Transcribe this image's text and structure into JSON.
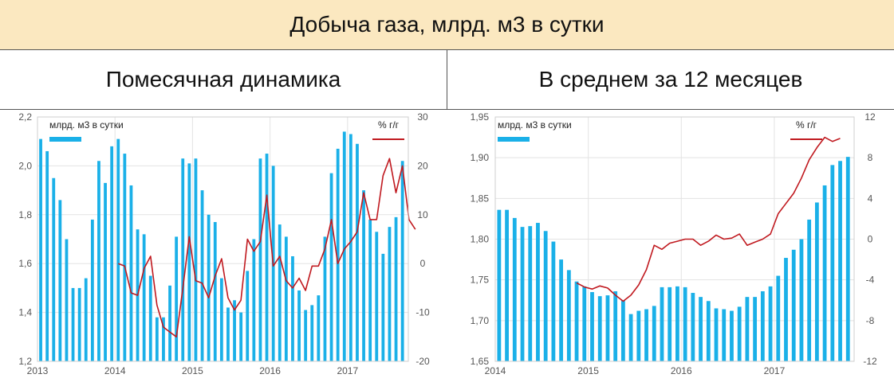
{
  "title": "Добыча газа, млрд. м3 в сутки",
  "colors": {
    "bar": "#1ab0e8",
    "line": "#c0191f"
  },
  "chart_data": [
    {
      "type": "bar+line",
      "title": "Помесячная динамика",
      "legend_left": "млрд. м3 в сутки",
      "legend_right": "% г/г",
      "x_start": "2013-01",
      "x_tick_labels": [
        "2013",
        "2014",
        "2015",
        "2016",
        "2017"
      ],
      "x_tick_months": [
        0,
        12,
        24,
        36,
        48
      ],
      "y_left": {
        "lim": [
          1.2,
          2.2
        ],
        "ticks": [
          1.2,
          1.4,
          1.6,
          1.8,
          2.0,
          2.2
        ],
        "labels": [
          "1,2",
          "1,4",
          "1,6",
          "1,8",
          "2,0",
          "2,2"
        ]
      },
      "y_right": {
        "lim": [
          -20,
          30
        ],
        "ticks": [
          -20,
          -10,
          0,
          10,
          20,
          30
        ],
        "labels": [
          "-20",
          "-10",
          "0",
          "10",
          "20",
          "30"
        ]
      },
      "bar_values": [
        2.11,
        2.06,
        1.95,
        1.86,
        1.7,
        1.5,
        1.5,
        1.54,
        1.78,
        2.02,
        1.93,
        2.08,
        2.11,
        2.05,
        1.92,
        1.74,
        1.72,
        1.55,
        1.38,
        1.38,
        1.51,
        1.71,
        2.03,
        2.01,
        2.03,
        1.9,
        1.8,
        1.77,
        1.54,
        1.42,
        1.45,
        1.4,
        1.57,
        1.7,
        2.03,
        2.05,
        2.0,
        1.76,
        1.71,
        1.63,
        1.49,
        1.41,
        1.43,
        1.47,
        1.71,
        1.97,
        2.07,
        2.14,
        2.13,
        2.09,
        1.9,
        1.78,
        1.73,
        1.64,
        1.75,
        1.79,
        2.02
      ],
      "line_start": "2014-01",
      "line_values": [
        0,
        -0.5,
        -6,
        -6.5,
        -1,
        1.5,
        -8.5,
        -13,
        -14,
        -15,
        -5,
        5.5,
        -3.5,
        -4,
        -7,
        -2.5,
        1,
        -7,
        -9.5,
        -7.5,
        5,
        2.5,
        4.5,
        14,
        -0.5,
        1.5,
        -3.5,
        -5,
        -3,
        -5.5,
        -0.5,
        -0.5,
        3,
        9,
        0,
        3,
        4.5,
        6.5,
        14.5,
        9,
        9,
        18,
        21.5,
        14.5,
        20,
        9,
        7
      ]
    },
    {
      "type": "bar+line",
      "title": "В среднем за 12 месяцев",
      "legend_left": "млрд. м3 в сутки",
      "legend_right": "% г/г",
      "x_start": "2014-01",
      "x_tick_labels": [
        "2014",
        "2015",
        "2016",
        "2017"
      ],
      "x_tick_months": [
        0,
        12,
        24,
        36
      ],
      "y_left": {
        "lim": [
          1.65,
          1.95
        ],
        "ticks": [
          1.65,
          1.7,
          1.75,
          1.8,
          1.85,
          1.9,
          1.95
        ],
        "labels": [
          "1,65",
          "1,70",
          "1,75",
          "1,80",
          "1,85",
          "1,90",
          "1,95"
        ]
      },
      "y_right": {
        "lim": [
          -12,
          12
        ],
        "ticks": [
          -12,
          -8,
          -4,
          0,
          4,
          8,
          12
        ],
        "labels": [
          "-12",
          "-8",
          "-4",
          "0",
          "4",
          "8",
          "12"
        ]
      },
      "bar_values": [
        1.836,
        1.836,
        1.826,
        1.815,
        1.816,
        1.82,
        1.81,
        1.797,
        1.775,
        1.762,
        1.748,
        1.742,
        1.735,
        1.73,
        1.731,
        1.736,
        1.725,
        1.708,
        1.712,
        1.714,
        1.718,
        1.741,
        1.741,
        1.742,
        1.741,
        1.734,
        1.729,
        1.724,
        1.715,
        1.714,
        1.712,
        1.717,
        1.729,
        1.729,
        1.736,
        1.742,
        1.755,
        1.777,
        1.787,
        1.8,
        1.824,
        1.845,
        1.866,
        1.891,
        1.896,
        1.901
      ],
      "line_start": "2014-11",
      "line_values": [
        -4.3,
        -4.7,
        -4.9,
        -4.6,
        -4.8,
        -5.5,
        -6.1,
        -5.5,
        -4.5,
        -3,
        -0.6,
        -1,
        -0.4,
        -0.2,
        0,
        0,
        -0.6,
        -0.2,
        0.4,
        0,
        0.1,
        0.5,
        -0.6,
        -0.3,
        0,
        0.5,
        2.5,
        3.5,
        4.5,
        6,
        7.8,
        9,
        10,
        9.6,
        9.9
      ]
    }
  ]
}
